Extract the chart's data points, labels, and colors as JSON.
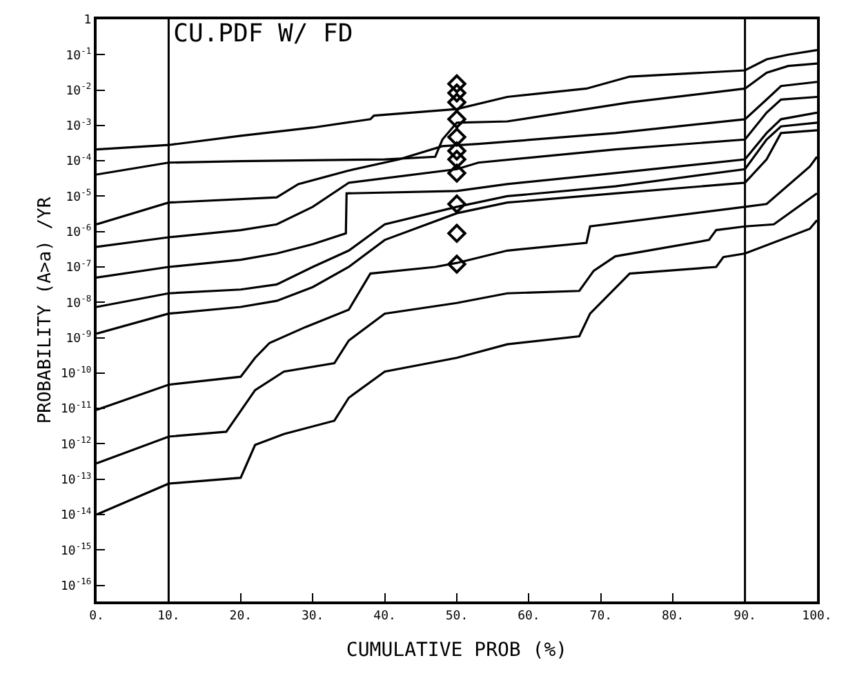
{
  "chart_data": {
    "type": "line",
    "title": "CU.PDF W/ FD",
    "xlabel": "CUMULATIVE PROB (%)",
    "ylabel": "PROBABILITY (A>a) /YR",
    "log": "y",
    "xlim": [
      0,
      100
    ],
    "xticks": [
      {
        "value": 0,
        "label": "0."
      },
      {
        "value": 10,
        "label": "10."
      },
      {
        "value": 20,
        "label": "20."
      },
      {
        "value": 30,
        "label": "30."
      },
      {
        "value": 40,
        "label": "40."
      },
      {
        "value": 50,
        "label": "50."
      },
      {
        "value": 60,
        "label": "60."
      },
      {
        "value": 70,
        "label": "70."
      },
      {
        "value": 80,
        "label": "80."
      },
      {
        "value": 90,
        "label": "90."
      },
      {
        "value": 100,
        "label": "100."
      }
    ],
    "ylim": [
      3.5e-17,
      1
    ],
    "yticks": [
      {
        "value": 1,
        "label": "1"
      },
      {
        "value": 0.1,
        "label": "10$^{-1}$"
      },
      {
        "value": 0.01,
        "label": "10$^{-2}$"
      },
      {
        "value": 0.001,
        "label": "10$^{-3}$"
      },
      {
        "value": 0.0001,
        "label": "10$^{-4}$"
      },
      {
        "value": 1e-05,
        "label": "10$^{-5}$"
      },
      {
        "value": 1e-06,
        "label": "10$^{-6}$"
      },
      {
        "value": 1e-07,
        "label": "10$^{-7}$"
      },
      {
        "value": 1e-08,
        "label": "10$^{-8}$"
      },
      {
        "value": 1e-09,
        "label": "10$^{-9}$"
      },
      {
        "value": 1e-10,
        "label": "10$^{-10}$"
      },
      {
        "value": 1e-11,
        "label": "10$^{-11}$"
      },
      {
        "value": 1e-12,
        "label": "10$^{-12}$"
      },
      {
        "value": 1e-13,
        "label": "10$^{-13}$"
      },
      {
        "value": 1e-14,
        "label": "10$^{-14}$"
      },
      {
        "value": 1e-15,
        "label": "10$^{-15}$"
      },
      {
        "value": 1e-16,
        "label": "10$^{-16}$"
      }
    ],
    "ref_lines": [
      {
        "axis": "x",
        "value": 10,
        "color": "#000000"
      },
      {
        "axis": "x",
        "value": 90,
        "color": "#000000"
      }
    ],
    "series": [
      {
        "color": "#000000",
        "marker": "none",
        "x": [
          0,
          10,
          20,
          30,
          38,
          38.5,
          50,
          57,
          68,
          74,
          90,
          93,
          96,
          100
        ],
        "values": [
          0.00021,
          0.00028,
          0.00051,
          0.00087,
          0.0015,
          0.0019,
          0.0029,
          0.0064,
          0.011,
          0.024,
          0.036,
          0.074,
          0.1,
          0.135
        ]
      },
      {
        "color": "#000000",
        "marker": "none",
        "x": [
          0,
          10,
          20,
          40,
          47,
          48,
          50,
          57,
          74,
          90,
          93,
          96,
          100
        ],
        "values": [
          4.1e-05,
          8.9e-05,
          9.8e-05,
          0.00011,
          0.00013,
          0.0004,
          0.0012,
          0.0013,
          0.0045,
          0.011,
          0.031,
          0.048,
          0.056
        ]
      },
      {
        "color": "#000000",
        "marker": "none",
        "x": [
          0,
          10,
          25,
          28,
          35,
          42,
          48,
          53,
          72,
          90,
          93,
          95,
          100
        ],
        "values": [
          1.6e-06,
          6.6e-06,
          9.3e-06,
          2.2e-05,
          5.3e-05,
          0.00011,
          0.00026,
          0.0003,
          0.00061,
          0.0015,
          0.0054,
          0.013,
          0.017
        ]
      },
      {
        "color": "#000000",
        "marker": "none",
        "x": [
          0,
          10,
          20,
          25,
          30,
          35,
          50,
          53,
          72,
          90,
          93,
          95,
          100
        ],
        "values": [
          3.7e-07,
          6.9e-07,
          1.1e-06,
          1.6e-06,
          5e-06,
          2.4e-05,
          5.8e-05,
          8.9e-05,
          0.00021,
          0.0004,
          0.0023,
          0.0054,
          0.0064
        ]
      },
      {
        "color": "#000000",
        "marker": "none",
        "x": [
          0,
          10,
          20,
          25,
          30,
          34.6,
          34.7,
          50,
          57,
          72,
          90,
          93,
          95,
          100
        ],
        "values": [
          5e-08,
          1e-07,
          1.6e-07,
          2.4e-07,
          4.4e-07,
          8.9e-07,
          1.2e-05,
          1.4e-05,
          2.2e-05,
          4.5e-05,
          0.00011,
          0.00061,
          0.0015,
          0.0023
        ]
      },
      {
        "color": "#000000",
        "marker": "none",
        "x": [
          0,
          10,
          20,
          25,
          30,
          35,
          40,
          50,
          57,
          72,
          90,
          93,
          95,
          100
        ],
        "values": [
          7.4e-09,
          1.8e-08,
          2.3e-08,
          3.2e-08,
          1e-07,
          2.9e-07,
          1.6e-06,
          5e-06,
          1e-05,
          1.9e-05,
          5.8e-05,
          0.0004,
          0.00094,
          0.0012
        ]
      },
      {
        "color": "#000000",
        "marker": "none",
        "x": [
          0,
          10,
          20,
          25,
          30,
          35,
          40,
          50,
          57,
          72,
          90,
          93,
          95,
          100
        ],
        "values": [
          1.3e-09,
          4.8e-09,
          7.4e-09,
          1.1e-08,
          2.7e-08,
          1e-07,
          5.8e-07,
          3.3e-06,
          6.6e-06,
          1.2e-05,
          2.4e-05,
          0.00011,
          0.00061,
          0.00073
        ]
      },
      {
        "color": "#000000",
        "marker": "none",
        "x": [
          0,
          10,
          20,
          22,
          24,
          29,
          35,
          38,
          47,
          50,
          57,
          68,
          68.5,
          90,
          93,
          99,
          100
        ],
        "values": [
          9.1e-12,
          4.7e-11,
          7.9e-11,
          2.7e-10,
          7.1e-10,
          2e-09,
          6.2e-09,
          6.5e-08,
          1e-07,
          1.3e-07,
          2.9e-07,
          4.8e-07,
          1.4e-06,
          5e-06,
          6e-06,
          6.9e-05,
          0.00013
        ]
      },
      {
        "color": "#000000",
        "marker": "none",
        "x": [
          0,
          10,
          18,
          22,
          26,
          33,
          35,
          40,
          50,
          57,
          67,
          69,
          72,
          85,
          86,
          90,
          94,
          100
        ],
        "values": [
          2.8e-13,
          1.6e-12,
          2.2e-12,
          3.3e-11,
          1.1e-10,
          1.9e-10,
          8.3e-10,
          4.8e-09,
          9.6e-09,
          1.8e-08,
          2.1e-08,
          7.8e-08,
          2e-07,
          5.8e-07,
          1.1e-06,
          1.4e-06,
          1.6e-06,
          1.2e-05
        ]
      },
      {
        "color": "#000000",
        "marker": "none",
        "x": [
          0,
          10,
          20,
          22,
          26,
          33,
          35,
          40,
          50,
          57,
          67,
          68.5,
          74,
          86,
          87,
          90,
          99,
          100
        ],
        "values": [
          1e-14,
          7.5e-14,
          1.1e-13,
          9.3e-13,
          1.9e-12,
          4.5e-12,
          2e-11,
          1.1e-10,
          2.7e-10,
          6.5e-10,
          1.1e-09,
          4.8e-09,
          6.5e-08,
          1e-07,
          1.9e-07,
          2.4e-07,
          1.2e-06,
          2.1e-06
        ]
      },
      {
        "type": "scatter",
        "color": "#000000",
        "marker": "diamond",
        "x": [
          50,
          50,
          50,
          50,
          50,
          50,
          50,
          50,
          50,
          50,
          50
        ],
        "values": [
          0.015,
          0.0083,
          0.0045,
          0.0015,
          0.00047,
          0.00019,
          0.00011,
          4.5e-05,
          6e-06,
          8.9e-07,
          1.2e-07
        ]
      }
    ]
  }
}
